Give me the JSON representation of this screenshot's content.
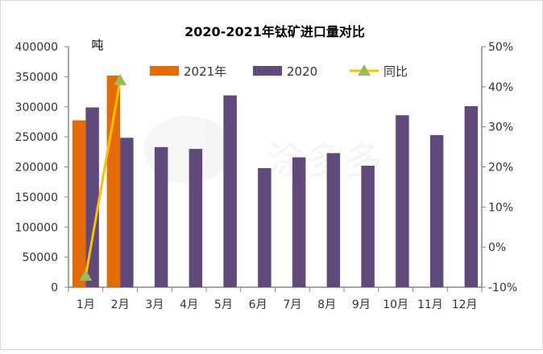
{
  "chart_data": {
    "type": "bar",
    "title": "2020-2021年钛矿进口量对比",
    "ylabel": "吨",
    "categories": [
      "1月",
      "2月",
      "3月",
      "4月",
      "5月",
      "6月",
      "7月",
      "8月",
      "9月",
      "10月",
      "11月",
      "12月"
    ],
    "series": [
      {
        "name": "2021年",
        "type": "bar",
        "color": "#E36C09",
        "axis": "left",
        "values": [
          277500,
          352000,
          null,
          null,
          null,
          null,
          null,
          null,
          null,
          null,
          null,
          null
        ]
      },
      {
        "name": "2020",
        "type": "bar",
        "color": "#604A7B",
        "axis": "left",
        "values": [
          299000,
          248500,
          233000,
          230000,
          319000,
          198000,
          216000,
          223000,
          202000,
          286000,
          253000,
          301000
        ]
      },
      {
        "name": "同比",
        "type": "line",
        "color": "#FFC000",
        "marker_color": "#9BBB59",
        "axis": "right",
        "values": [
          -7.2,
          41.6,
          null,
          null,
          null,
          null,
          null,
          null,
          null,
          null,
          null,
          null
        ]
      }
    ],
    "ylim": [
      0,
      400000
    ],
    "yticks": [
      "0",
      "50000",
      "100000",
      "150000",
      "200000",
      "250000",
      "300000",
      "350000",
      "400000"
    ],
    "y2lim": [
      -10,
      50
    ],
    "y2ticks": [
      "-10%",
      "0%",
      "10%",
      "20%",
      "30%",
      "40%",
      "50%"
    ],
    "grid": false,
    "legend": "top"
  }
}
